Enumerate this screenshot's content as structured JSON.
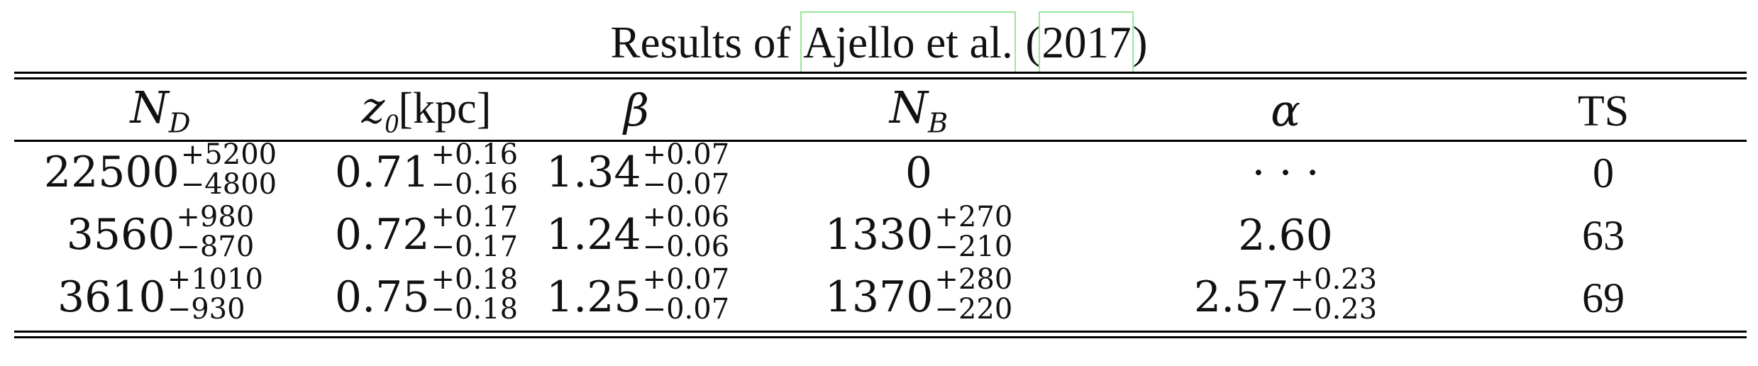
{
  "title": {
    "prefix": "Results of ",
    "author": "Ajello et al.",
    "open_paren": " (",
    "year": "2017",
    "close_paren": ")"
  },
  "table": {
    "headers": {
      "nd_base": "N",
      "nd_sub": "D",
      "z0_base": "z",
      "z0_sub": "0",
      "z0_unit": "[kpc]",
      "beta": "β",
      "nb_base": "N",
      "nb_sub": "B",
      "alpha": "α",
      "ts": "TS"
    },
    "rows": [
      {
        "nd": {
          "v": "22500",
          "up": "+5200",
          "dn": "−4800"
        },
        "z0": {
          "v": "0.71",
          "up": "+0.16",
          "dn": "−0.16"
        },
        "beta": {
          "v": "1.34",
          "up": "+0.07",
          "dn": "−0.07"
        },
        "nb": {
          "v": "0",
          "up": "",
          "dn": ""
        },
        "alpha": {
          "v": "· · ·",
          "up": "",
          "dn": ""
        },
        "ts": "0"
      },
      {
        "nd": {
          "v": "3560",
          "up": "+980",
          "dn": "−870"
        },
        "z0": {
          "v": "0.72",
          "up": "+0.17",
          "dn": "−0.17"
        },
        "beta": {
          "v": "1.24",
          "up": "+0.06",
          "dn": "−0.06"
        },
        "nb": {
          "v": "1330",
          "up": "+270",
          "dn": "−210"
        },
        "alpha": {
          "v": "2.60",
          "up": "",
          "dn": ""
        },
        "ts": "63"
      },
      {
        "nd": {
          "v": "3610",
          "up": "+1010",
          "dn": "−930"
        },
        "z0": {
          "v": "0.75",
          "up": "+0.18",
          "dn": "−0.18"
        },
        "beta": {
          "v": "1.25",
          "up": "+0.07",
          "dn": "−0.07"
        },
        "nb": {
          "v": "1370",
          "up": "+280",
          "dn": "−220"
        },
        "alpha": {
          "v": "2.57",
          "up": "+0.23",
          "dn": "−0.23"
        },
        "ts": "69"
      }
    ]
  }
}
